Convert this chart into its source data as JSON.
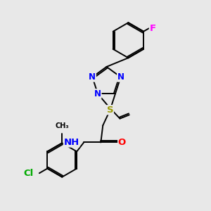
{
  "background_color": "#e8e8e8",
  "bond_color": "#000000",
  "atom_colors": {
    "N": "#0000ff",
    "O": "#ff0000",
    "S": "#999900",
    "F": "#ff00ff",
    "Cl": "#00aa00",
    "H": "#555555",
    "C": "#000000"
  },
  "font_size": 8.5,
  "lw": 1.4,
  "figsize": [
    3.0,
    3.0
  ],
  "dpi": 100,
  "xlim": [
    0,
    10
  ],
  "ylim": [
    0,
    10
  ]
}
